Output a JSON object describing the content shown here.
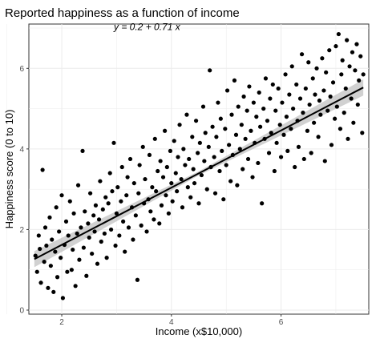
{
  "chart_data": {
    "type": "scatter",
    "title": "Reported happiness as a function of income",
    "xlabel": "Income (x$10,000)",
    "ylabel": "Happiness score (0 to 10)",
    "annotation": "y = 0.2 + 0.71 x",
    "xlim": [
      1.4,
      7.6
    ],
    "ylim": [
      -0.1,
      7.1
    ],
    "x_ticks": [
      2,
      4,
      6
    ],
    "y_ticks": [
      0,
      2,
      4,
      6
    ],
    "grid": true,
    "point_color": "#000000",
    "fit_line": {
      "intercept": 0.2,
      "slope": 0.71,
      "x_range": [
        1.5,
        7.5
      ],
      "color": "#000000",
      "band_color": "#b3b3b3"
    },
    "points": [
      [
        1.52,
        1.35
      ],
      [
        1.55,
        0.95
      ],
      [
        1.58,
        1.85
      ],
      [
        1.6,
        1.52
      ],
      [
        1.62,
        0.68
      ],
      [
        1.65,
        3.48
      ],
      [
        1.68,
        1.2
      ],
      [
        1.7,
        2.05
      ],
      [
        1.72,
        1.6
      ],
      [
        1.75,
        0.55
      ],
      [
        1.78,
        2.3
      ],
      [
        1.8,
        1.1
      ],
      [
        1.82,
        1.75
      ],
      [
        1.85,
        0.45
      ],
      [
        1.88,
        1.45
      ],
      [
        1.9,
        2.55
      ],
      [
        1.92,
        0.82
      ],
      [
        1.95,
        1.95
      ],
      [
        1.98,
        1.3
      ],
      [
        2.0,
        2.85
      ],
      [
        2.02,
        0.3
      ],
      [
        2.05,
        1.62
      ],
      [
        2.08,
        2.2
      ],
      [
        2.1,
        0.95
      ],
      [
        2.12,
        1.85
      ],
      [
        2.15,
        2.7
      ],
      [
        2.18,
        1.0
      ],
      [
        2.2,
        1.5
      ],
      [
        2.22,
        2.4
      ],
      [
        2.25,
        0.6
      ],
      [
        2.28,
        1.9
      ],
      [
        2.3,
        3.1
      ],
      [
        2.32,
        1.25
      ],
      [
        2.35,
        2.05
      ],
      [
        2.38,
        3.95
      ],
      [
        2.4,
        1.55
      ],
      [
        2.42,
        2.45
      ],
      [
        2.45,
        0.85
      ],
      [
        2.48,
        2.15
      ],
      [
        2.5,
        1.8
      ],
      [
        2.52,
        2.9
      ],
      [
        2.55,
        1.4
      ],
      [
        2.58,
        2.35
      ],
      [
        2.6,
        1.95
      ],
      [
        2.62,
        2.6
      ],
      [
        2.65,
        1.15
      ],
      [
        2.68,
        2.25
      ],
      [
        2.7,
        3.2
      ],
      [
        2.72,
        1.7
      ],
      [
        2.75,
        2.5
      ],
      [
        2.78,
        1.9
      ],
      [
        2.8,
        2.8
      ],
      [
        2.82,
        1.3
      ],
      [
        2.85,
        2.65
      ],
      [
        2.88,
        3.4
      ],
      [
        2.9,
        2.0
      ],
      [
        2.92,
        2.95
      ],
      [
        2.95,
        4.15
      ],
      [
        2.98,
        1.6
      ],
      [
        3.0,
        2.4
      ],
      [
        3.02,
        3.05
      ],
      [
        3.05,
        1.85
      ],
      [
        3.08,
        2.7
      ],
      [
        3.1,
        3.55
      ],
      [
        3.12,
        2.2
      ],
      [
        3.15,
        1.45
      ],
      [
        3.18,
        2.85
      ],
      [
        3.2,
        3.3
      ],
      [
        3.22,
        2.05
      ],
      [
        3.25,
        3.75
      ],
      [
        3.28,
        2.55
      ],
      [
        3.3,
        1.75
      ],
      [
        3.32,
        3.15
      ],
      [
        3.35,
        2.35
      ],
      [
        3.38,
        0.75
      ],
      [
        3.4,
        2.9
      ],
      [
        3.42,
        3.6
      ],
      [
        3.45,
        2.1
      ],
      [
        3.48,
        4.05
      ],
      [
        3.5,
        2.65
      ],
      [
        3.52,
        3.25
      ],
      [
        3.55,
        1.95
      ],
      [
        3.58,
        2.75
      ],
      [
        3.6,
        3.85
      ],
      [
        3.62,
        2.45
      ],
      [
        3.65,
        3.05
      ],
      [
        3.68,
        2.25
      ],
      [
        3.7,
        4.25
      ],
      [
        3.72,
        2.95
      ],
      [
        3.75,
        3.45
      ],
      [
        3.78,
        2.15
      ],
      [
        3.8,
        3.7
      ],
      [
        3.82,
        2.6
      ],
      [
        3.85,
        3.3
      ],
      [
        3.88,
        4.45
      ],
      [
        3.9,
        2.85
      ],
      [
        3.92,
        3.55
      ],
      [
        3.95,
        2.4
      ],
      [
        3.98,
        3.95
      ],
      [
        4.0,
        3.15
      ],
      [
        4.02,
        2.7
      ],
      [
        4.05,
        4.2
      ],
      [
        4.08,
        3.4
      ],
      [
        4.1,
        2.95
      ],
      [
        4.12,
        3.8
      ],
      [
        4.15,
        4.6
      ],
      [
        4.18,
        3.25
      ],
      [
        4.2,
        2.55
      ],
      [
        4.22,
        4.0
      ],
      [
        4.25,
        3.6
      ],
      [
        4.28,
        4.85
      ],
      [
        4.3,
        3.05
      ],
      [
        4.32,
        3.75
      ],
      [
        4.35,
        2.8
      ],
      [
        4.38,
        4.3
      ],
      [
        4.4,
        3.5
      ],
      [
        4.42,
        3.15
      ],
      [
        4.45,
        4.7
      ],
      [
        4.48,
        3.9
      ],
      [
        4.5,
        2.65
      ],
      [
        4.52,
        4.15
      ],
      [
        4.55,
        3.35
      ],
      [
        4.58,
        5.05
      ],
      [
        4.6,
        3.7
      ],
      [
        4.62,
        4.4
      ],
      [
        4.65,
        3.0
      ],
      [
        4.68,
        4.05
      ],
      [
        4.7,
        5.95
      ],
      [
        4.72,
        3.55
      ],
      [
        4.75,
        4.55
      ],
      [
        4.78,
        3.8
      ],
      [
        4.8,
        2.9
      ],
      [
        4.82,
        4.3
      ],
      [
        4.85,
        5.15
      ],
      [
        4.88,
        3.45
      ],
      [
        4.9,
        4.75
      ],
      [
        4.92,
        3.95
      ],
      [
        4.95,
        2.75
      ],
      [
        4.98,
        4.5
      ],
      [
        5.0,
        3.6
      ],
      [
        5.02,
        5.45
      ],
      [
        5.05,
        4.1
      ],
      [
        5.08,
        3.2
      ],
      [
        5.1,
        4.85
      ],
      [
        5.12,
        3.85
      ],
      [
        5.15,
        5.7
      ],
      [
        5.18,
        4.35
      ],
      [
        5.2,
        3.1
      ],
      [
        5.22,
        5.05
      ],
      [
        5.25,
        4.0
      ],
      [
        5.28,
        4.6
      ],
      [
        5.3,
        3.5
      ],
      [
        5.32,
        5.3
      ],
      [
        5.35,
        4.25
      ],
      [
        5.38,
        4.95
      ],
      [
        5.4,
        3.75
      ],
      [
        5.42,
        5.55
      ],
      [
        5.45,
        4.45
      ],
      [
        5.48,
        3.3
      ],
      [
        5.5,
        5.15
      ],
      [
        5.52,
        4.15
      ],
      [
        5.55,
        4.8
      ],
      [
        5.58,
        3.65
      ],
      [
        5.6,
        5.4
      ],
      [
        5.62,
        4.55
      ],
      [
        5.65,
        2.65
      ],
      [
        5.68,
        5.0
      ],
      [
        5.7,
        4.25
      ],
      [
        5.72,
        5.75
      ],
      [
        5.75,
        4.7
      ],
      [
        5.78,
        3.9
      ],
      [
        5.8,
        5.25
      ],
      [
        5.82,
        4.4
      ],
      [
        5.85,
        5.6
      ],
      [
        5.88,
        3.45
      ],
      [
        5.9,
        4.95
      ],
      [
        5.92,
        4.15
      ],
      [
        5.95,
        5.5
      ],
      [
        5.98,
        4.6
      ],
      [
        6.0,
        3.8
      ],
      [
        6.02,
        5.15
      ],
      [
        6.05,
        4.35
      ],
      [
        6.08,
        5.85
      ],
      [
        6.1,
        4.8
      ],
      [
        6.12,
        3.95
      ],
      [
        6.15,
        5.35
      ],
      [
        6.18,
        4.5
      ],
      [
        6.2,
        6.05
      ],
      [
        6.22,
        5.0
      ],
      [
        6.25,
        3.55
      ],
      [
        6.28,
        5.6
      ],
      [
        6.3,
        4.7
      ],
      [
        6.32,
        4.05
      ],
      [
        6.35,
        5.25
      ],
      [
        6.38,
        6.35
      ],
      [
        6.4,
        4.9
      ],
      [
        6.42,
        3.75
      ],
      [
        6.45,
        5.5
      ],
      [
        6.48,
        4.45
      ],
      [
        6.5,
        6.15
      ],
      [
        6.52,
        5.1
      ],
      [
        6.55,
        3.9
      ],
      [
        6.58,
        5.75
      ],
      [
        6.6,
        4.65
      ],
      [
        6.62,
        5.35
      ],
      [
        6.65,
        6.0
      ],
      [
        6.68,
        4.3
      ],
      [
        6.7,
        5.2
      ],
      [
        6.72,
        4.85
      ],
      [
        6.75,
        6.25
      ],
      [
        6.78,
        5.45
      ],
      [
        6.8,
        3.7
      ],
      [
        6.82,
        5.9
      ],
      [
        6.85,
        4.95
      ],
      [
        6.88,
        6.45
      ],
      [
        6.9,
        5.3
      ],
      [
        6.92,
        4.1
      ],
      [
        6.95,
        5.65
      ],
      [
        6.98,
        4.75
      ],
      [
        7.0,
        6.55
      ],
      [
        7.02,
        5.05
      ],
      [
        7.05,
        6.85
      ],
      [
        7.08,
        4.5
      ],
      [
        7.1,
        5.85
      ],
      [
        7.12,
        6.2
      ],
      [
        7.15,
        4.9
      ],
      [
        7.18,
        5.5
      ],
      [
        7.2,
        6.7
      ],
      [
        7.22,
        4.25
      ],
      [
        7.25,
        6.05
      ],
      [
        7.28,
        5.25
      ],
      [
        7.3,
        6.4
      ],
      [
        7.32,
        4.65
      ],
      [
        7.35,
        5.95
      ],
      [
        7.38,
        6.6
      ],
      [
        7.4,
        5.1
      ],
      [
        7.42,
        5.7
      ],
      [
        7.45,
        6.3
      ],
      [
        7.48,
        4.4
      ],
      [
        7.5,
        5.85
      ]
    ]
  }
}
